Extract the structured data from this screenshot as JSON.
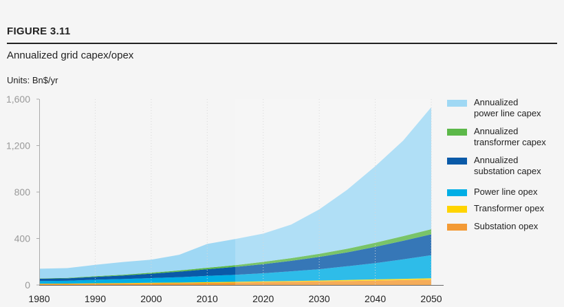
{
  "figure_label": "FIGURE 3.11",
  "chart_data": {
    "type": "area",
    "stacked": true,
    "title": "Annualized grid capex/opex",
    "units": "Units: Bn$/yr",
    "xlabel": "",
    "ylabel": "",
    "x": [
      1980,
      1985,
      1990,
      1995,
      2000,
      2005,
      2010,
      2015,
      2020,
      2025,
      2030,
      2035,
      2040,
      2045,
      2050
    ],
    "x_ticks": [
      "1980",
      "1990",
      "2000",
      "2010",
      "2020",
      "2030",
      "2040",
      "2050"
    ],
    "y_ticks": [
      "0",
      "400",
      "800",
      "1,200",
      "1,600"
    ],
    "ylim": [
      0,
      1600
    ],
    "xlim": [
      1980,
      2050
    ],
    "grid": "vertical dotted",
    "legend_position": "right",
    "highlight_from_year": 2015,
    "series": [
      {
        "name": "Substation opex",
        "color": "#f39a35",
        "values": [
          8,
          9,
          11,
          12,
          14,
          16,
          18,
          21,
          24,
          27,
          30,
          34,
          38,
          42,
          46
        ]
      },
      {
        "name": "Transformer opex",
        "color": "#ffd400",
        "values": [
          3,
          3,
          4,
          4,
          5,
          5,
          6,
          6,
          7,
          7,
          8,
          9,
          10,
          11,
          12
        ]
      },
      {
        "name": "Power line opex",
        "color": "#00aee5",
        "values": [
          23,
          24,
          30,
          35,
          40,
          46,
          54,
          60,
          70,
          84,
          98,
          118,
          140,
          168,
          198
        ]
      },
      {
        "name": "Annualized substation capex",
        "color": "#0a5aa8",
        "values": [
          20,
          21,
          25,
          30,
          38,
          48,
          58,
          68,
          78,
          90,
          105,
          120,
          140,
          160,
          180
        ]
      },
      {
        "name": "Annualized transformer capex",
        "color": "#5cb849",
        "values": [
          3,
          4,
          5,
          7,
          9,
          10,
          12,
          15,
          20,
          23,
          27,
          31,
          36,
          40,
          44
        ]
      },
      {
        "name": "Annualized power line capex",
        "color": "#9fd8f4",
        "values": [
          83,
          84,
          98,
          110,
          112,
          135,
          205,
          225,
          243,
          289,
          382,
          508,
          658,
          823,
          1050
        ]
      }
    ],
    "legend": [
      {
        "lines": [
          "Annualized",
          "power line capex"
        ],
        "color": "#9fd8f4"
      },
      {
        "lines": [
          "Annualized",
          "transformer capex"
        ],
        "color": "#5cb849"
      },
      {
        "lines": [
          "Annualized",
          "substation capex"
        ],
        "color": "#0a5aa8"
      },
      {
        "lines": [
          "Power line opex"
        ],
        "color": "#00aee5"
      },
      {
        "lines": [
          "Transformer opex"
        ],
        "color": "#ffd400"
      },
      {
        "lines": [
          "Substation opex"
        ],
        "color": "#f39a35"
      }
    ]
  }
}
